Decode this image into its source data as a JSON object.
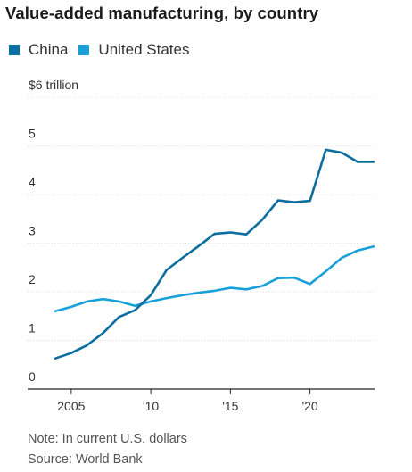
{
  "chart_data": {
    "type": "line",
    "title": "Value-added manufacturing, by country",
    "y_unit_label": "$6 trillion",
    "ylim": [
      0,
      6
    ],
    "y_ticks": [
      0,
      1,
      2,
      3,
      4,
      5,
      6
    ],
    "y_tick_labels": [
      "0",
      "1",
      "2",
      "3",
      "4",
      "5",
      "$6 trillion"
    ],
    "xlim": [
      2004,
      2024
    ],
    "x_ticks": [
      2005,
      2010,
      2015,
      2020
    ],
    "x_tick_labels": [
      "2005",
      "'10",
      "'15",
      "'20"
    ],
    "grid": true,
    "legend_position": "top-left",
    "series": [
      {
        "name": "China",
        "color": "#0b6e9e",
        "x": [
          2004,
          2005,
          2006,
          2007,
          2008,
          2009,
          2010,
          2011,
          2012,
          2013,
          2014,
          2015,
          2016,
          2017,
          2018,
          2019,
          2020,
          2021,
          2022,
          2023,
          2024
        ],
        "values": [
          0.63,
          0.74,
          0.9,
          1.15,
          1.48,
          1.62,
          1.93,
          2.45,
          2.7,
          2.94,
          3.19,
          3.22,
          3.18,
          3.48,
          3.88,
          3.84,
          3.87,
          4.92,
          4.86,
          4.67,
          4.67
        ]
      },
      {
        "name": "United States",
        "color": "#1aa0d8",
        "x": [
          2004,
          2005,
          2006,
          2007,
          2008,
          2009,
          2010,
          2011,
          2012,
          2013,
          2014,
          2015,
          2016,
          2017,
          2018,
          2019,
          2020,
          2021,
          2022,
          2023,
          2024
        ],
        "values": [
          1.6,
          1.69,
          1.8,
          1.85,
          1.8,
          1.71,
          1.8,
          1.87,
          1.93,
          1.98,
          2.02,
          2.08,
          2.05,
          2.12,
          2.28,
          2.29,
          2.16,
          2.42,
          2.7,
          2.85,
          2.93
        ]
      }
    ]
  },
  "note": "Note: In current U.S. dollars",
  "source": "Source: World Bank"
}
